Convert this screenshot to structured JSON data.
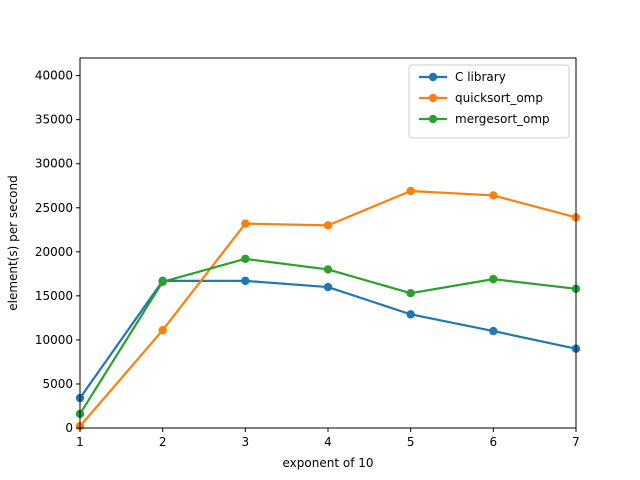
{
  "chart_data": {
    "type": "line",
    "title": "",
    "xlabel": "exponent of 10",
    "ylabel": "element(s) per second",
    "x": [
      1,
      2,
      3,
      4,
      5,
      6,
      7
    ],
    "xlim": [
      1,
      7
    ],
    "ylim": [
      0,
      42000
    ],
    "xticks": [
      "1",
      "2",
      "3",
      "4",
      "5",
      "6",
      "7"
    ],
    "yticks": [
      0,
      5000,
      10000,
      15000,
      20000,
      25000,
      30000,
      35000,
      40000
    ],
    "ytick_labels": [
      "0",
      "5000",
      "10000",
      "15000",
      "20000",
      "25000",
      "30000",
      "35000",
      "40000"
    ],
    "grid": false,
    "legend_position": "top-right",
    "series": [
      {
        "name": "C library",
        "color": "#1f77b4",
        "values": [
          3400,
          16700,
          16700,
          16000,
          12900,
          11000,
          9000
        ]
      },
      {
        "name": "quicksort_omp",
        "color": "#ff7f0e",
        "values": [
          200,
          11100,
          23200,
          23000,
          26900,
          26400,
          23900
        ]
      },
      {
        "name": "mergesort_omp",
        "color": "#2ca02c",
        "values": [
          1600,
          16600,
          19200,
          18000,
          15300,
          16900,
          15800
        ]
      }
    ]
  }
}
